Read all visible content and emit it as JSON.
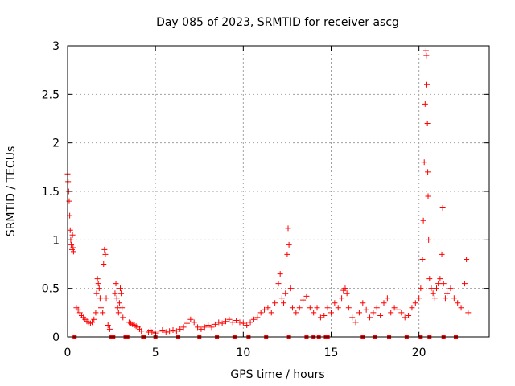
{
  "chart_data": {
    "type": "scatter",
    "title": "Day 085 of 2023, SRMTID for receiver ascg",
    "xlabel": "GPS time / hours",
    "ylabel": "SRMTID / TECUs",
    "xlim": [
      0,
      24
    ],
    "ylim": [
      0,
      3
    ],
    "xticks": [
      0,
      5,
      10,
      15,
      20
    ],
    "xtick_labels": [
      "0",
      "5",
      "10",
      "15",
      "20"
    ],
    "yticks": [
      0,
      0.5,
      1,
      1.5,
      2,
      2.5,
      3
    ],
    "ytick_labels": [
      "0",
      "0.5",
      "1",
      "1.5",
      "2",
      "2.5",
      "3"
    ],
    "grid": true,
    "marker": "plus",
    "color": "#ff0000",
    "series": [
      {
        "name": "SRMTID",
        "points": [
          [
            0.0,
            1.68
          ],
          [
            0.03,
            1.6
          ],
          [
            0.06,
            1.5
          ],
          [
            0.09,
            1.4
          ],
          [
            0.12,
            1.25
          ],
          [
            0.15,
            1.1
          ],
          [
            0.18,
            1.0
          ],
          [
            0.21,
            0.95
          ],
          [
            0.25,
            0.9
          ],
          [
            0.28,
            1.05
          ],
          [
            0.31,
            0.92
          ],
          [
            0.34,
            0.88
          ],
          [
            0.5,
            0.3
          ],
          [
            0.6,
            0.28
          ],
          [
            0.7,
            0.25
          ],
          [
            0.8,
            0.22
          ],
          [
            0.9,
            0.2
          ],
          [
            1.0,
            0.18
          ],
          [
            1.1,
            0.16
          ],
          [
            1.2,
            0.15
          ],
          [
            1.3,
            0.14
          ],
          [
            1.4,
            0.15
          ],
          [
            1.5,
            0.18
          ],
          [
            1.6,
            0.25
          ],
          [
            1.65,
            0.45
          ],
          [
            1.7,
            0.6
          ],
          [
            1.75,
            0.55
          ],
          [
            1.8,
            0.5
          ],
          [
            1.85,
            0.4
          ],
          [
            1.9,
            0.3
          ],
          [
            2.0,
            0.25
          ],
          [
            2.05,
            0.75
          ],
          [
            2.1,
            0.9
          ],
          [
            2.15,
            0.85
          ],
          [
            2.2,
            0.4
          ],
          [
            2.3,
            0.12
          ],
          [
            2.4,
            0.08
          ],
          [
            2.7,
            0.45
          ],
          [
            2.75,
            0.55
          ],
          [
            2.8,
            0.4
          ],
          [
            2.85,
            0.3
          ],
          [
            2.9,
            0.25
          ],
          [
            2.95,
            0.35
          ],
          [
            3.0,
            0.5
          ],
          [
            3.05,
            0.45
          ],
          [
            3.1,
            0.3
          ],
          [
            3.15,
            0.2
          ],
          [
            3.5,
            0.15
          ],
          [
            3.6,
            0.14
          ],
          [
            3.7,
            0.13
          ],
          [
            3.8,
            0.12
          ],
          [
            3.9,
            0.11
          ],
          [
            4.0,
            0.1
          ],
          [
            4.1,
            0.08
          ],
          [
            4.2,
            0.06
          ],
          [
            4.6,
            0.05
          ],
          [
            4.7,
            0.07
          ],
          [
            4.8,
            0.05
          ],
          [
            5.0,
            0.04
          ],
          [
            5.2,
            0.06
          ],
          [
            5.4,
            0.07
          ],
          [
            5.6,
            0.05
          ],
          [
            5.8,
            0.06
          ],
          [
            6.0,
            0.07
          ],
          [
            6.2,
            0.06
          ],
          [
            6.4,
            0.08
          ],
          [
            6.6,
            0.1
          ],
          [
            6.8,
            0.14
          ],
          [
            7.0,
            0.18
          ],
          [
            7.2,
            0.15
          ],
          [
            7.4,
            0.1
          ],
          [
            7.6,
            0.08
          ],
          [
            7.8,
            0.1
          ],
          [
            8.0,
            0.12
          ],
          [
            8.2,
            0.1
          ],
          [
            8.4,
            0.13
          ],
          [
            8.6,
            0.15
          ],
          [
            8.8,
            0.14
          ],
          [
            9.0,
            0.16
          ],
          [
            9.2,
            0.18
          ],
          [
            9.4,
            0.15
          ],
          [
            9.6,
            0.17
          ],
          [
            9.8,
            0.15
          ],
          [
            10.0,
            0.14
          ],
          [
            10.2,
            0.12
          ],
          [
            10.4,
            0.15
          ],
          [
            10.6,
            0.18
          ],
          [
            10.8,
            0.2
          ],
          [
            11.0,
            0.25
          ],
          [
            11.2,
            0.28
          ],
          [
            11.4,
            0.3
          ],
          [
            11.6,
            0.25
          ],
          [
            11.8,
            0.35
          ],
          [
            12.0,
            0.55
          ],
          [
            12.1,
            0.65
          ],
          [
            12.2,
            0.4
          ],
          [
            12.3,
            0.35
          ],
          [
            12.4,
            0.45
          ],
          [
            12.5,
            0.85
          ],
          [
            12.55,
            1.12
          ],
          [
            12.6,
            0.95
          ],
          [
            12.7,
            0.5
          ],
          [
            12.8,
            0.3
          ],
          [
            13.0,
            0.25
          ],
          [
            13.2,
            0.3
          ],
          [
            13.4,
            0.38
          ],
          [
            13.6,
            0.42
          ],
          [
            13.8,
            0.3
          ],
          [
            14.0,
            0.25
          ],
          [
            14.2,
            0.3
          ],
          [
            14.4,
            0.2
          ],
          [
            14.6,
            0.22
          ],
          [
            14.8,
            0.3
          ],
          [
            15.0,
            0.25
          ],
          [
            15.2,
            0.35
          ],
          [
            15.4,
            0.3
          ],
          [
            15.6,
            0.4
          ],
          [
            15.7,
            0.48
          ],
          [
            15.8,
            0.5
          ],
          [
            15.9,
            0.45
          ],
          [
            16.0,
            0.3
          ],
          [
            16.2,
            0.2
          ],
          [
            16.4,
            0.15
          ],
          [
            16.6,
            0.25
          ],
          [
            16.8,
            0.35
          ],
          [
            17.0,
            0.28
          ],
          [
            17.2,
            0.2
          ],
          [
            17.4,
            0.25
          ],
          [
            17.6,
            0.3
          ],
          [
            17.8,
            0.22
          ],
          [
            18.0,
            0.35
          ],
          [
            18.2,
            0.4
          ],
          [
            18.4,
            0.25
          ],
          [
            18.6,
            0.3
          ],
          [
            18.8,
            0.28
          ],
          [
            19.0,
            0.25
          ],
          [
            19.2,
            0.2
          ],
          [
            19.4,
            0.22
          ],
          [
            19.6,
            0.3
          ],
          [
            19.8,
            0.35
          ],
          [
            20.0,
            0.4
          ],
          [
            20.1,
            0.5
          ],
          [
            20.2,
            0.8
          ],
          [
            20.25,
            1.2
          ],
          [
            20.3,
            1.8
          ],
          [
            20.35,
            2.4
          ],
          [
            20.4,
            2.95
          ],
          [
            20.42,
            2.9
          ],
          [
            20.45,
            2.6
          ],
          [
            20.48,
            2.2
          ],
          [
            20.5,
            1.7
          ],
          [
            20.52,
            1.45
          ],
          [
            20.55,
            1.0
          ],
          [
            20.6,
            0.6
          ],
          [
            20.7,
            0.5
          ],
          [
            20.8,
            0.45
          ],
          [
            20.9,
            0.4
          ],
          [
            21.0,
            0.5
          ],
          [
            21.1,
            0.55
          ],
          [
            21.2,
            0.6
          ],
          [
            21.3,
            0.85
          ],
          [
            21.35,
            1.33
          ],
          [
            21.4,
            0.55
          ],
          [
            21.5,
            0.4
          ],
          [
            21.6,
            0.45
          ],
          [
            21.8,
            0.5
          ],
          [
            22.0,
            0.4
          ],
          [
            22.2,
            0.35
          ],
          [
            22.4,
            0.3
          ],
          [
            22.6,
            0.55
          ],
          [
            22.7,
            0.8
          ],
          [
            22.8,
            0.25
          ]
        ]
      }
    ],
    "zero_marks_x": [
      0.4,
      2.5,
      2.6,
      3.3,
      3.4,
      4.3,
      4.35,
      5.0,
      6.3,
      7.5,
      8.5,
      9.5,
      10.3,
      11.3,
      12.6,
      13.6,
      14.0,
      14.3,
      14.7,
      14.8,
      16.8,
      17.5,
      18.3,
      19.3,
      20.1,
      20.6,
      21.4,
      22.1
    ]
  }
}
